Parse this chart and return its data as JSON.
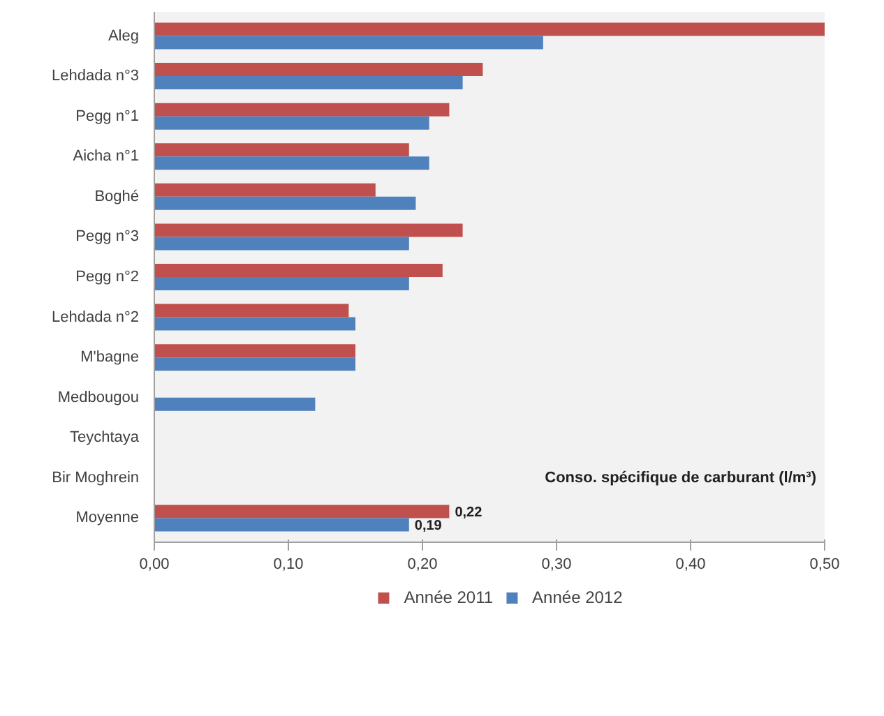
{
  "chart_data": {
    "type": "bar",
    "orientation": "horizontal",
    "categories": [
      "Aleg",
      "Lehdada n°3",
      "Pegg n°1",
      "Aicha n°1",
      "Boghé",
      "Pegg n°3",
      "Pegg n°2",
      "Lehdada n°2",
      "M'bagne",
      "Medbougou",
      "Teychtaya",
      "Bir Moghrein",
      "Moyenne"
    ],
    "series": [
      {
        "name": "Année 2011",
        "color": "#c0504d",
        "values": [
          0.5,
          0.245,
          0.22,
          0.19,
          0.165,
          0.23,
          0.215,
          0.145,
          0.15,
          null,
          null,
          null,
          0.22
        ],
        "value_labels": [
          null,
          null,
          null,
          null,
          null,
          null,
          null,
          null,
          null,
          null,
          null,
          null,
          "0,22"
        ]
      },
      {
        "name": "Année 2012",
        "color": "#4f81bd",
        "values": [
          0.29,
          0.23,
          0.205,
          0.205,
          0.195,
          0.19,
          0.19,
          0.15,
          0.15,
          0.12,
          null,
          null,
          0.19
        ],
        "value_labels": [
          null,
          null,
          null,
          null,
          null,
          null,
          null,
          null,
          null,
          null,
          null,
          null,
          "0,19"
        ]
      }
    ],
    "xlim": [
      0,
      0.5
    ],
    "xticks": [
      {
        "value": 0,
        "label": "0,00"
      },
      {
        "value": 0.1,
        "label": "0,10"
      },
      {
        "value": 0.2,
        "label": "0,20"
      },
      {
        "value": 0.3,
        "label": "0,30"
      },
      {
        "value": 0.4,
        "label": "0,40"
      },
      {
        "value": 0.5,
        "label": "0,50"
      }
    ],
    "annotations": [
      "Conso. spécifique de carburant (l/m³)"
    ],
    "grid": false,
    "legend": "bottom"
  }
}
